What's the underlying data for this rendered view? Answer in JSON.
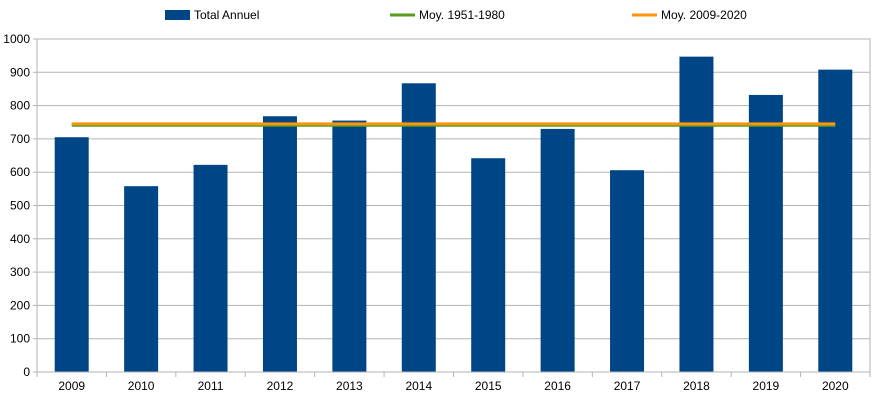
{
  "chart_data": {
    "type": "bar",
    "categories": [
      "2009",
      "2010",
      "2011",
      "2012",
      "2013",
      "2014",
      "2015",
      "2016",
      "2017",
      "2018",
      "2019",
      "2020"
    ],
    "series": [
      {
        "name": "Total Annuel",
        "type": "bar",
        "color": "#004586",
        "values": [
          705,
          558,
          622,
          768,
          755,
          867,
          642,
          730,
          606,
          947,
          832,
          908
        ]
      },
      {
        "name": "Moy. 1951-1980",
        "type": "line",
        "color": "#579d1c",
        "values": [
          741,
          741,
          741,
          741,
          741,
          741,
          741,
          741,
          741,
          741,
          741,
          741
        ]
      },
      {
        "name": "Moy. 2009-2020",
        "type": "line",
        "color": "#ff950e",
        "values": [
          745,
          745,
          745,
          745,
          745,
          745,
          745,
          745,
          745,
          745,
          745,
          745
        ]
      }
    ],
    "yticks": [
      "0",
      "100",
      "200",
      "300",
      "400",
      "500",
      "600",
      "700",
      "800",
      "900",
      "1000"
    ],
    "ylim": [
      0,
      1000
    ],
    "grid": true,
    "legend_position": "top"
  }
}
